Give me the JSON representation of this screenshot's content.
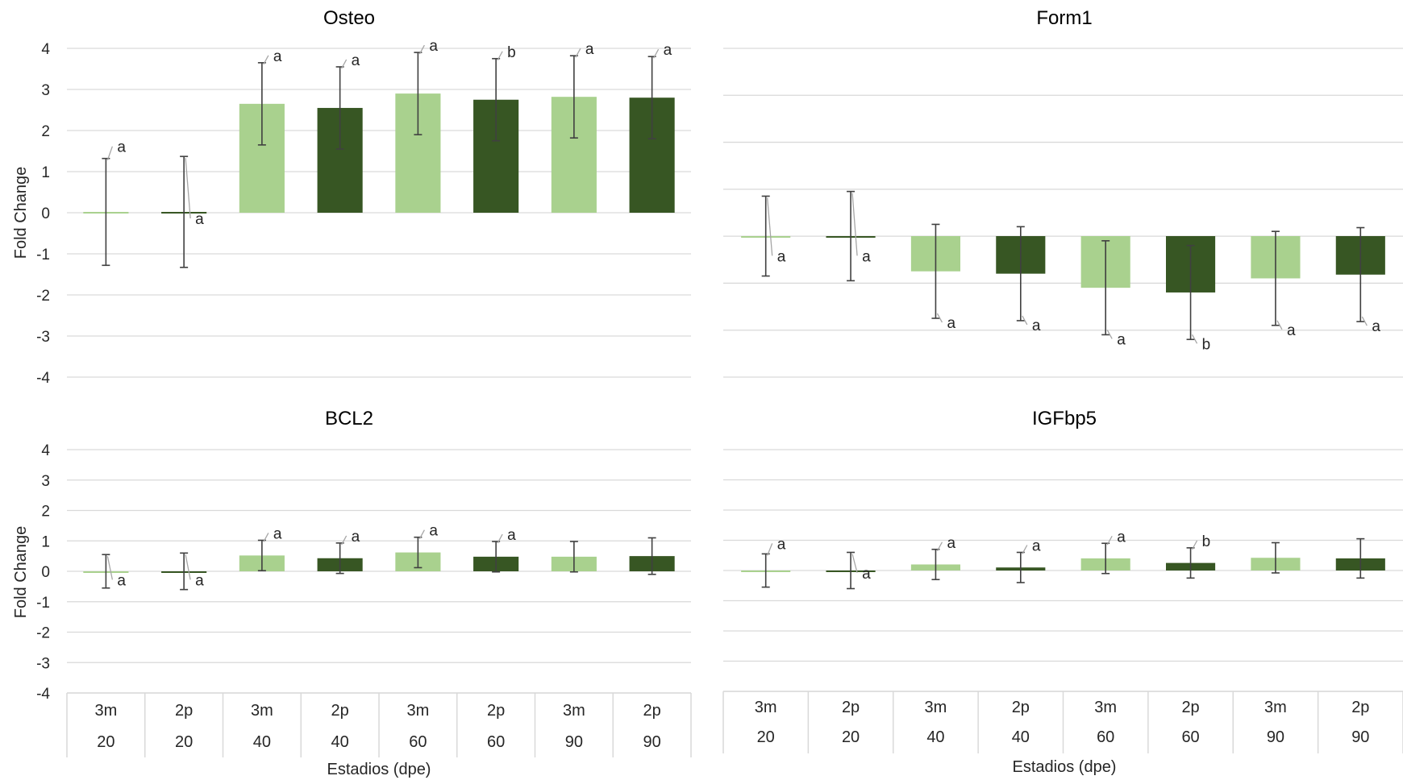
{
  "colors": {
    "light": "#a9d18e",
    "dark": "#375623",
    "grid": "#d9d9d9",
    "errorbar": "#404040",
    "leader": "#a6a6a6",
    "text": "#262626"
  },
  "ylabel": "Fold Change",
  "xlabel": "Estadios (dpe)",
  "x_groups": [
    {
      "top": "3m",
      "bottom": "20"
    },
    {
      "top": "2p",
      "bottom": "20"
    },
    {
      "top": "3m",
      "bottom": "40"
    },
    {
      "top": "2p",
      "bottom": "40"
    },
    {
      "top": "3m",
      "bottom": "60"
    },
    {
      "top": "2p",
      "bottom": "60"
    },
    {
      "top": "3m",
      "bottom": "90"
    },
    {
      "top": "2p",
      "bottom": "90"
    }
  ],
  "chart_data": [
    {
      "type": "bar",
      "title": "Osteo",
      "ylim": [
        -4,
        4
      ],
      "yticks": [
        "4",
        "3",
        "2",
        "1",
        "0",
        "-1",
        "-2",
        "-3",
        "-4"
      ],
      "categories": [
        "3m 20",
        "2p 20",
        "3m 40",
        "2p 40",
        "3m 60",
        "2p 60",
        "3m 90",
        "2p 90"
      ],
      "values": [
        0.02,
        0.02,
        2.65,
        2.55,
        2.9,
        2.75,
        2.82,
        2.8
      ],
      "error": [
        1.3,
        1.35,
        1.0,
        1.0,
        1.0,
        1.0,
        1.0,
        1.0
      ],
      "labels": [
        "a",
        "a",
        "a",
        "a",
        "a",
        "b",
        "a",
        "a"
      ],
      "grid": true
    },
    {
      "type": "bar",
      "title": "Form1",
      "ylim": [
        -4,
        4
      ],
      "yticks": [],
      "categories": [
        "3m 20",
        "2p 20",
        "3m 40",
        "2p 40",
        "3m 60",
        "2p 60",
        "3m 90",
        "2p 90"
      ],
      "values": [
        0.0,
        0.0,
        -0.75,
        -0.8,
        -1.1,
        -1.2,
        -0.9,
        -0.82
      ],
      "error": [
        0.85,
        0.95,
        1.0,
        1.0,
        1.0,
        1.0,
        1.0,
        1.0
      ],
      "labels": [
        "a",
        "a",
        "a",
        "a",
        "a",
        "b",
        "a",
        "a"
      ],
      "grid": true
    },
    {
      "type": "bar",
      "title": "BCL2",
      "ylim": [
        -4,
        4
      ],
      "yticks": [
        "4",
        "3",
        "2",
        "1",
        "0",
        "-1",
        "-2",
        "-3",
        "-4"
      ],
      "categories": [
        "3m 20",
        "2p 20",
        "3m 40",
        "2p 40",
        "3m 60",
        "2p 60",
        "3m 90",
        "2p 90"
      ],
      "values": [
        0.0,
        0.0,
        0.52,
        0.43,
        0.62,
        0.48,
        0.48,
        0.5
      ],
      "error": [
        0.55,
        0.6,
        0.5,
        0.5,
        0.5,
        0.5,
        0.5,
        0.6
      ],
      "labels": [
        "a",
        "a",
        "a",
        "a",
        "a",
        "a",
        "",
        ""
      ],
      "grid": true
    },
    {
      "type": "bar",
      "title": "IGFbp5",
      "ylim": [
        -4,
        4
      ],
      "yticks": [],
      "categories": [
        "3m 20",
        "2p 20",
        "3m 40",
        "2p 40",
        "3m 60",
        "2p 60",
        "3m 90",
        "2p 90"
      ],
      "values": [
        0.0,
        0.0,
        0.2,
        0.1,
        0.4,
        0.25,
        0.42,
        0.4
      ],
      "error": [
        0.55,
        0.6,
        0.5,
        0.5,
        0.5,
        0.5,
        0.5,
        0.65
      ],
      "labels": [
        "a",
        "a",
        "a",
        "a",
        "a",
        "b",
        "",
        ""
      ],
      "grid": true
    }
  ]
}
